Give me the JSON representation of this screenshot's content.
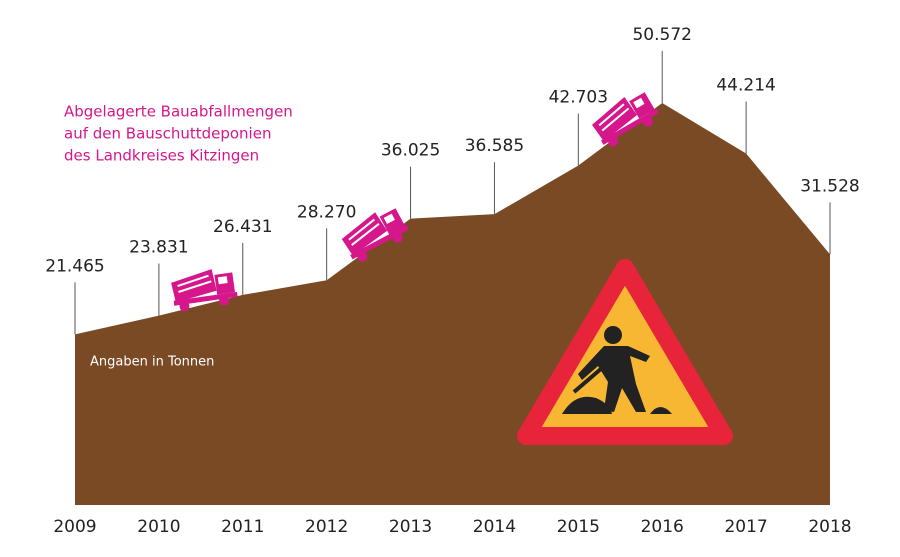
{
  "chart_data": {
    "type": "area",
    "title_lines": [
      "Abgelagerte Bauabfallmengen",
      "auf den Bauschuttdeponien",
      "des Landkreises Kitzingen"
    ],
    "annotation": "Angaben in Tonnen",
    "categories": [
      "2009",
      "2010",
      "2011",
      "2012",
      "2013",
      "2014",
      "2015",
      "2016",
      "2017",
      "2018"
    ],
    "values": [
      21465,
      23831,
      26431,
      28270,
      36025,
      36585,
      42703,
      50572,
      44214,
      31528
    ],
    "value_labels": [
      "21.465",
      "23.831",
      "26.431",
      "28.270",
      "36.025",
      "36.585",
      "42.703",
      "50.572",
      "44.214",
      "31.528"
    ],
    "color": "#7a4a25",
    "title_color": "#d6168b"
  }
}
